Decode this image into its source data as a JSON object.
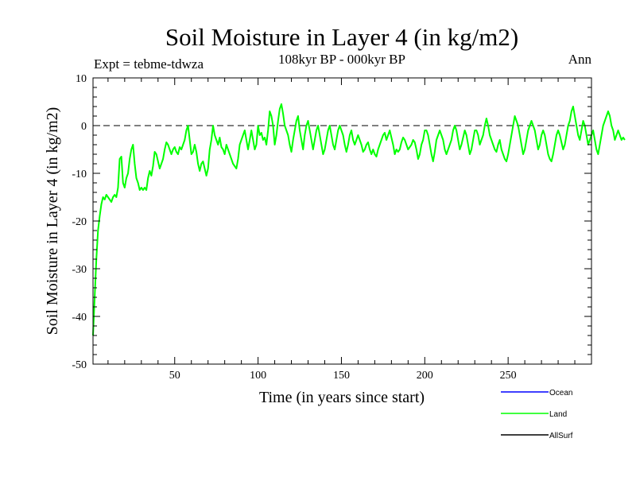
{
  "chart_data": {
    "type": "line",
    "title": "Soil Moisture in Layer 4 (in kg/m2)",
    "subtitle": "108kyr BP - 000kyr BP",
    "experiment_label": "Expt = tebme-tdwza",
    "season_label": "Ann",
    "xlabel": "Time (in years since start)",
    "ylabel": "Soil Moisture in Layer 4 (in kg/m2)",
    "xlim": [
      1,
      300
    ],
    "ylim": [
      -50,
      10
    ],
    "x_ticks": [
      50,
      100,
      150,
      200,
      250
    ],
    "x_tick_labels": [
      "50",
      "100",
      "150",
      "200",
      "250"
    ],
    "y_ticks": [
      10,
      0,
      -10,
      -20,
      -30,
      -40,
      -50
    ],
    "y_tick_labels": [
      "10",
      "0",
      "-10",
      "-20",
      "-30",
      "-40",
      "-50"
    ],
    "reference_line": 0,
    "legend": [
      {
        "label": "Ocean",
        "color": "#0000ff"
      },
      {
        "label": "Land",
        "color": "#00ff00"
      },
      {
        "label": "AllSurf",
        "color": "#000000"
      }
    ],
    "series": [
      {
        "name": "Land",
        "color": "#00ff00",
        "x_start": 1,
        "x_step": 1,
        "values": [
          -44,
          -36,
          -28,
          -22,
          -19,
          -16.5,
          -15,
          -15.5,
          -14.5,
          -15,
          -15.5,
          -16,
          -15,
          -14.5,
          -15,
          -13,
          -7,
          -6.5,
          -12,
          -13,
          -11,
          -10,
          -7,
          -5,
          -4,
          -8,
          -11,
          -12,
          -13.5,
          -13,
          -13.5,
          -13,
          -13.5,
          -11,
          -9.5,
          -10.5,
          -8.5,
          -5.5,
          -6,
          -7.5,
          -9,
          -8,
          -7,
          -5,
          -3.5,
          -4,
          -5,
          -6,
          -5,
          -4.5,
          -5.5,
          -6,
          -4.5,
          -5,
          -4,
          -3,
          -1,
          0,
          -3,
          -6,
          -5.5,
          -4,
          -5.5,
          -8,
          -9.5,
          -8,
          -7.5,
          -9,
          -10.5,
          -9,
          -5,
          -3,
          0,
          -2,
          -3,
          -4,
          -2.5,
          -4.5,
          -5,
          -6,
          -4,
          -5,
          -6,
          -7,
          -8,
          -8.5,
          -9,
          -7,
          -4,
          -3,
          -2,
          -1,
          -3,
          -5,
          -3,
          -1,
          -3,
          -5,
          -4,
          0,
          -2,
          -1.5,
          -3,
          -2.5,
          -4,
          -1,
          3,
          2,
          0,
          -4,
          -2,
          1,
          3.5,
          4.5,
          2.5,
          0,
          -1,
          -2,
          -4,
          -5.5,
          -3,
          -1,
          1,
          2,
          -1,
          -3,
          -5,
          -2,
          0,
          1,
          -1,
          -3,
          -5,
          -3,
          -1,
          0,
          -2,
          -4,
          -6,
          -5,
          -3,
          -1,
          0,
          -2,
          -4,
          -5,
          -3,
          -1,
          0,
          -1,
          -2,
          -4,
          -5.5,
          -4,
          -2,
          -1,
          -3,
          -4,
          -3,
          -2,
          -3,
          -4,
          -5.5,
          -5,
          -4,
          -3.5,
          -5,
          -6,
          -5,
          -6,
          -6.5,
          -5,
          -4,
          -3,
          -2,
          -1.5,
          -3,
          -2,
          -1,
          -2.5,
          -4,
          -6,
          -5,
          -5.5,
          -5,
          -3.5,
          -2.5,
          -3,
          -4,
          -5,
          -4.5,
          -4,
          -3,
          -3.5,
          -5,
          -7,
          -6,
          -4,
          -3,
          -1,
          -1,
          -2,
          -4,
          -6,
          -7.5,
          -5.5,
          -3,
          -2,
          -1,
          -2,
          -3,
          -5,
          -6,
          -5,
          -4,
          -3,
          -1,
          0,
          -1,
          -3,
          -5,
          -4,
          -2.5,
          -1,
          -2,
          -4,
          -6,
          -5,
          -3,
          -1,
          -1,
          -2,
          -4,
          -3,
          -2,
          0,
          1.5,
          0,
          -2,
          -3,
          -4,
          -5,
          -5.5,
          -4,
          -3,
          -5,
          -6,
          -7,
          -7.5,
          -6,
          -4,
          -2,
          0,
          2,
          1,
          0,
          -2,
          -4,
          -6,
          -5,
          -3,
          -1,
          0,
          1,
          0,
          -1,
          -3,
          -5,
          -4,
          -2,
          -1,
          -2,
          -4,
          -6,
          -7,
          -7.5,
          -6,
          -4,
          -2,
          -1,
          -2,
          -3.5,
          -5,
          -4,
          -2,
          0,
          1,
          3,
          4,
          2,
          0,
          -2,
          -3,
          -1,
          1,
          0,
          -2,
          -4,
          -3,
          -2,
          -1,
          -3,
          -5,
          -6,
          -4,
          -2,
          0,
          1,
          2,
          3,
          2,
          0,
          -1,
          -3,
          -2,
          -1,
          -2,
          -3,
          -2.5,
          -3
        ]
      }
    ]
  }
}
